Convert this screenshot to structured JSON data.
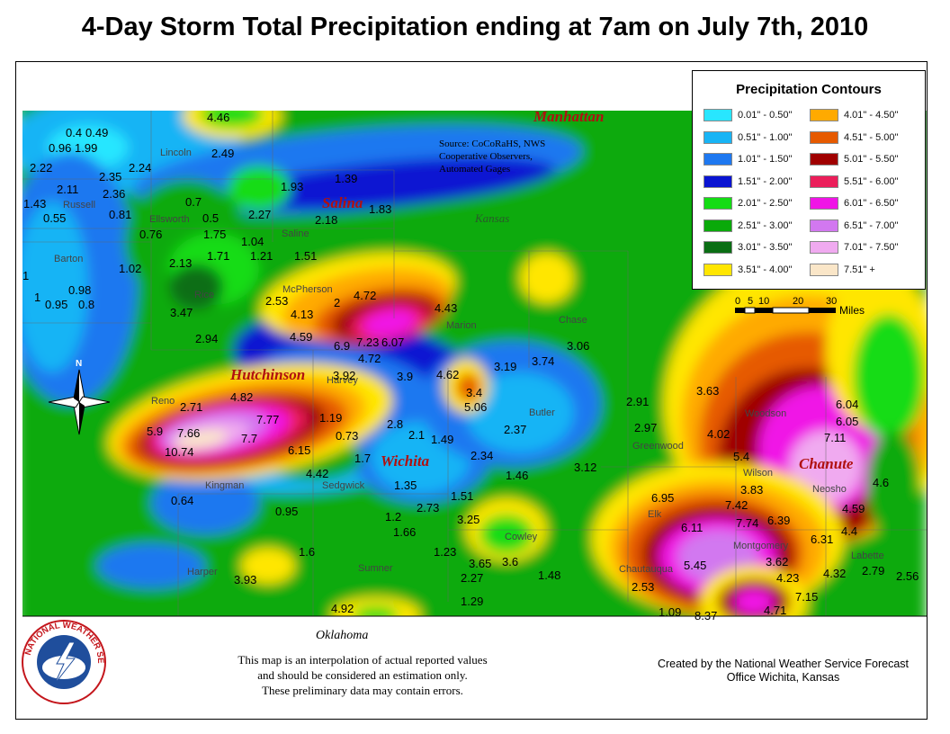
{
  "title": "4-Day Storm Total Precipitation ending at 7am on July 7th, 2010",
  "legend": {
    "title": "Precipitation Contours",
    "items": [
      {
        "label": "0.01\" - 0.50\"",
        "color": "#28e6ff"
      },
      {
        "label": "0.51\" - 1.00\"",
        "color": "#18b4f5"
      },
      {
        "label": "1.01\" - 1.50\"",
        "color": "#1e78f0"
      },
      {
        "label": "1.51\" - 2.00\"",
        "color": "#0a14d2"
      },
      {
        "label": "2.01\" - 2.50\"",
        "color": "#14dc14"
      },
      {
        "label": "2.51\" - 3.00\"",
        "color": "#0aaa0a"
      },
      {
        "label": "3.01\" - 3.50\"",
        "color": "#0a6e14"
      },
      {
        "label": "3.51\" - 4.00\"",
        "color": "#ffe600"
      },
      {
        "label": "4.01\" - 4.50\"",
        "color": "#ffaa00"
      },
      {
        "label": "4.51\" - 5.00\"",
        "color": "#e65a00"
      },
      {
        "label": "5.01\" - 5.50\"",
        "color": "#a00000"
      },
      {
        "label": "5.51\" - 6.00\"",
        "color": "#eb1e5a"
      },
      {
        "label": "6.01\" - 6.50\"",
        "color": "#f014e6"
      },
      {
        "label": "6.51\" - 7.00\"",
        "color": "#d278f0"
      },
      {
        "label": "7.01\" - 7.50\"",
        "color": "#f0aaf0"
      },
      {
        "label": "7.51\" +",
        "color": "#fae6c8"
      }
    ]
  },
  "scale": {
    "ticks": [
      "0",
      "5",
      "10",
      "20",
      "30"
    ],
    "unit": "Miles"
  },
  "source_text": [
    "Source: CoCoRaHS, NWS",
    "Cooperative Observers,",
    "Automated Gages"
  ],
  "state_label": "Kansas",
  "oklahoma_label": "Oklahoma",
  "disclaimer": [
    "This map is an interpolation of actual reported values",
    "and should be considered an estimation only.",
    "These preliminary data may contain errors."
  ],
  "credit": [
    "Created by the National Weather Service Forecast",
    "Office Wichita, Kansas"
  ],
  "logo_text": "NATIONAL WEATHER SERVICE",
  "north_label": "N",
  "cities": [
    "Manhattan",
    "Salina",
    "Hutchinson",
    "Wichita",
    "Chanute"
  ],
  "counties": [
    "Lincoln",
    "Russell",
    "Ellsworth",
    "Saline",
    "Barton",
    "Rice",
    "McPherson",
    "Marion",
    "Chase",
    "Reno",
    "Harvey",
    "Butler",
    "Greenwood",
    "Woodson",
    "Kingman",
    "Sedgwick",
    "Wilson",
    "Neosho",
    "Elk",
    "Montgomery",
    "Labette",
    "Harper",
    "Sumner",
    "Cowley",
    "Chautauqua"
  ],
  "observations": [
    "0.4",
    "0.49",
    "0.96",
    "1.99",
    "2.22",
    "2.35",
    "2.24",
    "2.11",
    "2.36",
    "1.43",
    "0.81",
    "0.55",
    "0.7",
    "0.5",
    "0.76",
    "4.46",
    "2.49",
    "1.93",
    "1.39",
    "1.83",
    "2.18",
    "2.27",
    "1.75",
    "1.04",
    "1.71",
    "1.21",
    "1.51",
    "1.02",
    "2.13",
    "1",
    "0.98",
    "1",
    "0.95",
    "0.8",
    "3.47",
    "2.53",
    "2",
    "4.72",
    "4.13",
    "4.43",
    "2.94",
    "4.59",
    "6.9",
    "7.23",
    "6.07",
    "4.72",
    "3.92",
    "3.9",
    "4.62",
    "3.19",
    "3.74",
    "3.06",
    "4.82",
    "2.71",
    "7.77",
    "5.9",
    "7.66",
    "7.7",
    "10.74",
    "6.15",
    "4.42",
    "1.19",
    "0.73",
    "2.8",
    "2.1",
    "1.49",
    "1.7",
    "3.4",
    "5.06",
    "2.37",
    "2.34",
    "1.46",
    "2.91",
    "3.63",
    "2.97",
    "4.02",
    "5.4",
    "3.12",
    "6.04",
    "6.05",
    "7.11",
    "4.6",
    "4.59",
    "4.4",
    "1.35",
    "2.73",
    "1.51",
    "3.25",
    "3.83",
    "6.95",
    "7.42",
    "6.11",
    "7.74",
    "6.39",
    "6.31",
    "0.64",
    "0.95",
    "1.2",
    "1.66",
    "1.6",
    "1.23",
    "3.65",
    "3.6",
    "3.93",
    "2.27",
    "1.48",
    "5.45",
    "2.53",
    "3.62",
    "4.23",
    "4.32",
    "2.79",
    "2.56",
    "1.29",
    "4.92",
    "1.09",
    "8.37",
    "4.71",
    "7.15"
  ]
}
